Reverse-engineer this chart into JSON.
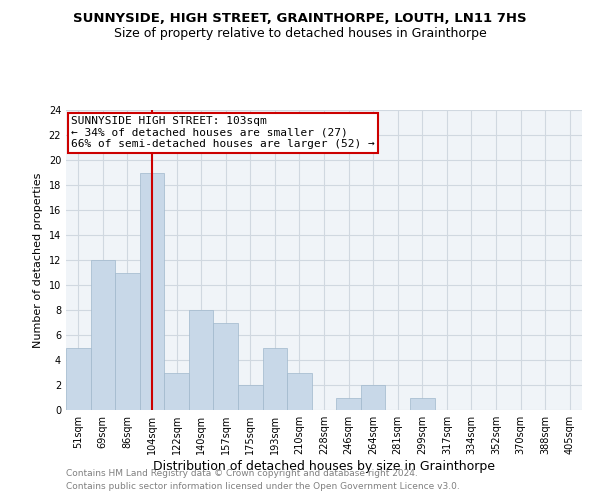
{
  "title": "SUNNYSIDE, HIGH STREET, GRAINTHORPE, LOUTH, LN11 7HS",
  "subtitle": "Size of property relative to detached houses in Grainthorpe",
  "xlabel": "Distribution of detached houses by size in Grainthorpe",
  "ylabel": "Number of detached properties",
  "bar_labels": [
    "51sqm",
    "69sqm",
    "86sqm",
    "104sqm",
    "122sqm",
    "140sqm",
    "157sqm",
    "175sqm",
    "193sqm",
    "210sqm",
    "228sqm",
    "246sqm",
    "264sqm",
    "281sqm",
    "299sqm",
    "317sqm",
    "334sqm",
    "352sqm",
    "370sqm",
    "388sqm",
    "405sqm"
  ],
  "bar_heights": [
    5,
    12,
    11,
    19,
    3,
    8,
    7,
    2,
    5,
    3,
    0,
    1,
    2,
    0,
    1,
    0,
    0,
    0,
    0,
    0,
    0
  ],
  "bar_color": "#c8d8e8",
  "bar_edge_color": "#a0b8cc",
  "vline_x_index": 3,
  "vline_color": "#cc0000",
  "annotation_lines": [
    "SUNNYSIDE HIGH STREET: 103sqm",
    "← 34% of detached houses are smaller (27)",
    "66% of semi-detached houses are larger (52) →"
  ],
  "annotation_box_color": "#cc0000",
  "ylim": [
    0,
    24
  ],
  "yticks": [
    0,
    2,
    4,
    6,
    8,
    10,
    12,
    14,
    16,
    18,
    20,
    22,
    24
  ],
  "grid_color": "#d0d8e0",
  "background_color": "#f0f4f8",
  "footer_lines": [
    "Contains HM Land Registry data © Crown copyright and database right 2024.",
    "Contains public sector information licensed under the Open Government Licence v3.0."
  ],
  "footer_color": "#808080",
  "title_fontsize": 9.5,
  "subtitle_fontsize": 9,
  "xlabel_fontsize": 9,
  "ylabel_fontsize": 8,
  "tick_fontsize": 7,
  "annotation_fontsize": 8,
  "footer_fontsize": 6.5
}
